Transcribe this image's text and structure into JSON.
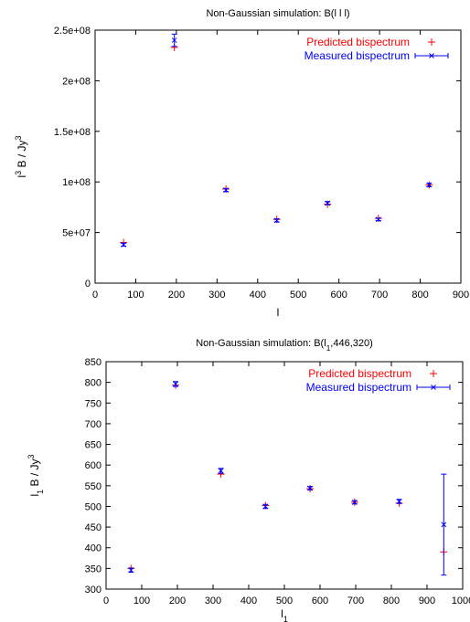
{
  "chart_data": [
    {
      "type": "scatter",
      "title": "Non-Gaussian simulation: B(l l l)",
      "xlabel": "l",
      "ylabel": "l^3 B / Jy^3",
      "xlim": [
        0,
        900
      ],
      "ylim": [
        0,
        250000000
      ],
      "xticks": [
        0,
        100,
        200,
        300,
        400,
        500,
        600,
        700,
        800,
        900
      ],
      "xtick_labels": [
        "0",
        "100",
        "200",
        "300",
        "400",
        "500",
        "600",
        "700",
        "800",
        "900"
      ],
      "yticks": [
        0,
        50000000,
        100000000,
        150000000,
        200000000,
        250000000
      ],
      "ytick_labels": [
        "0",
        "5e+07",
        "1e+08",
        "1.5e+08",
        "2e+08",
        "2.5e+08"
      ],
      "legend_position": "top-right",
      "series": [
        {
          "name": "Predicted bispectrum",
          "marker": "plus",
          "color": "#ff0000",
          "x": [
            70,
            195,
            322,
            447,
            572,
            697,
            822
          ],
          "y": [
            40000000,
            233000000,
            93000000,
            63000000,
            78000000,
            64000000,
            97000000
          ]
        },
        {
          "name": "Measured bispectrum",
          "marker": "x-errorbar",
          "color": "#0000ff",
          "x": [
            70,
            195,
            322,
            447,
            572,
            697,
            822
          ],
          "y": [
            38000000,
            240000000,
            92000000,
            62000000,
            79000000,
            63000000,
            97000000
          ],
          "err": [
            1500000,
            6000000,
            1500000,
            1500000,
            1500000,
            1200000,
            1800000
          ]
        }
      ]
    },
    {
      "type": "scatter",
      "title": "Non-Gaussian simulation: B(l1,446,320)",
      "xlabel": "l1",
      "ylabel": "l1 B / Jy^3",
      "xlim": [
        0,
        1000
      ],
      "ylim": [
        300,
        850
      ],
      "xticks": [
        0,
        100,
        200,
        300,
        400,
        500,
        600,
        700,
        800,
        900,
        1000
      ],
      "xtick_labels": [
        "0",
        "100",
        "200",
        "300",
        "400",
        "500",
        "600",
        "700",
        "800",
        "900",
        "1000"
      ],
      "yticks": [
        300,
        350,
        400,
        450,
        500,
        550,
        600,
        650,
        700,
        750,
        800,
        850
      ],
      "ytick_labels": [
        "300",
        "350",
        "400",
        "450",
        "500",
        "550",
        "600",
        "650",
        "700",
        "750",
        "800",
        "850"
      ],
      "legend_position": "top-right",
      "series": [
        {
          "name": "Predicted bispectrum",
          "marker": "plus",
          "color": "#ff0000",
          "x": [
            70,
            195,
            322,
            447,
            572,
            697,
            822,
            947
          ],
          "y": [
            350,
            793,
            578,
            502,
            543,
            510,
            508,
            390
          ]
        },
        {
          "name": "Measured bispectrum",
          "marker": "x-errorbar",
          "color": "#0000ff",
          "x": [
            70,
            195,
            322,
            447,
            572,
            697,
            822,
            947
          ],
          "y": [
            346,
            796,
            586,
            500,
            544,
            510,
            512,
            456
          ],
          "err": [
            5,
            6,
            6,
            5,
            4,
            4,
            5,
            122
          ]
        }
      ]
    }
  ]
}
